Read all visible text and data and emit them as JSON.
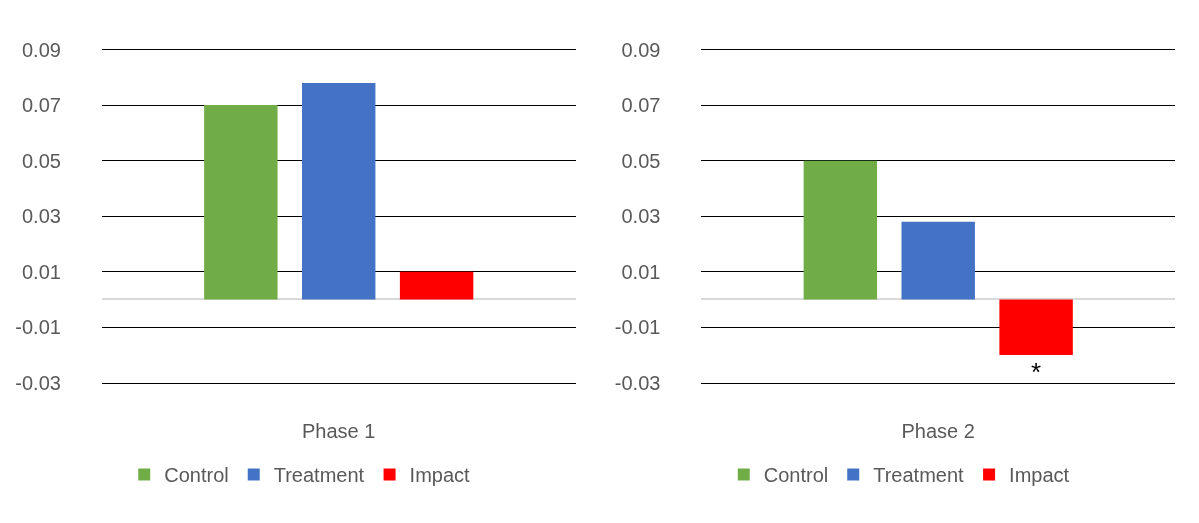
{
  "chart_data": [
    {
      "type": "bar",
      "categories": [
        "Phase 1"
      ],
      "ylim": [
        -0.03,
        0.09
      ],
      "yticks": [
        -0.03,
        -0.01,
        0.01,
        0.03,
        0.05,
        0.07,
        0.09
      ],
      "grid": "y",
      "legend": "bottom",
      "series": [
        {
          "name": "Control",
          "color": "#70ad47",
          "values": [
            0.07
          ]
        },
        {
          "name": "Treatment",
          "color": "#4472c4",
          "values": [
            0.078
          ]
        },
        {
          "name": "Impact",
          "color": "#ff0000",
          "values": [
            0.01
          ]
        }
      ]
    },
    {
      "type": "bar",
      "categories": [
        "Phase 2"
      ],
      "ylim": [
        -0.03,
        0.09
      ],
      "yticks": [
        -0.03,
        -0.01,
        0.01,
        0.03,
        0.05,
        0.07,
        0.09
      ],
      "grid": "y",
      "legend": "bottom",
      "series": [
        {
          "name": "Control",
          "color": "#70ad47",
          "values": [
            0.05
          ]
        },
        {
          "name": "Treatment",
          "color": "#4472c4",
          "values": [
            0.028
          ]
        },
        {
          "name": "Impact",
          "color": "#ff0000",
          "values": [
            -0.02
          ]
        }
      ],
      "annotations": [
        "*"
      ]
    }
  ]
}
